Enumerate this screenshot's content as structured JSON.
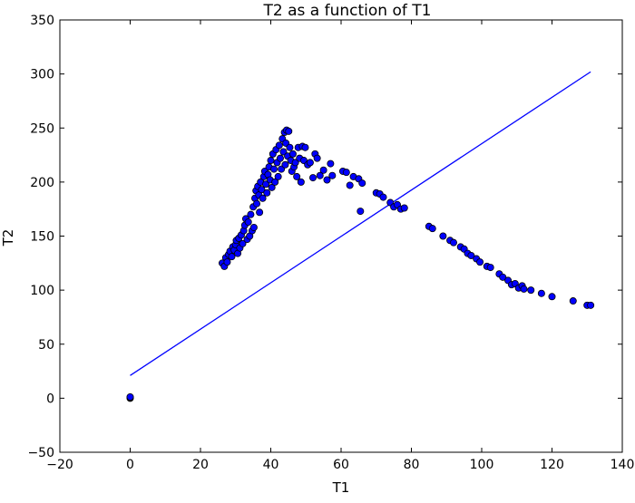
{
  "chart_data": {
    "type": "scatter",
    "title": "T2 as a function of T1",
    "xlabel": "T1",
    "ylabel": "T2",
    "xlim": [
      -20,
      140
    ],
    "ylim": [
      -50,
      350
    ],
    "xticks": [
      -20,
      0,
      20,
      40,
      60,
      80,
      100,
      120,
      140
    ],
    "yticks": [
      -50,
      0,
      50,
      100,
      150,
      200,
      250,
      300,
      350
    ],
    "xtick_labels": [
      "−20",
      "0",
      "20",
      "40",
      "60",
      "80",
      "100",
      "120",
      "140"
    ],
    "ytick_labels": [
      "−50",
      "0",
      "50",
      "100",
      "150",
      "200",
      "250",
      "300",
      "350"
    ],
    "grid": false,
    "legend": "none",
    "scatter_color": "#0000ff",
    "line_color": "#0000ff",
    "points": [
      {
        "x": 0,
        "y": 0
      },
      {
        "x": 0,
        "y": 0.6
      },
      {
        "x": 0,
        "y": 1.2
      },
      {
        "x": 26.2,
        "y": 125
      },
      {
        "x": 26.8,
        "y": 122
      },
      {
        "x": 27.2,
        "y": 130
      },
      {
        "x": 27.6,
        "y": 126
      },
      {
        "x": 28.0,
        "y": 133
      },
      {
        "x": 28.4,
        "y": 136
      },
      {
        "x": 28.9,
        "y": 131
      },
      {
        "x": 29.2,
        "y": 140
      },
      {
        "x": 29.6,
        "y": 137
      },
      {
        "x": 30.0,
        "y": 142
      },
      {
        "x": 30.2,
        "y": 146
      },
      {
        "x": 30.6,
        "y": 134
      },
      {
        "x": 30.9,
        "y": 148
      },
      {
        "x": 31.2,
        "y": 139
      },
      {
        "x": 31.6,
        "y": 151
      },
      {
        "x": 32.0,
        "y": 143
      },
      {
        "x": 32.3,
        "y": 155
      },
      {
        "x": 32.6,
        "y": 160
      },
      {
        "x": 32.9,
        "y": 166
      },
      {
        "x": 33.3,
        "y": 147
      },
      {
        "x": 33.6,
        "y": 163
      },
      {
        "x": 34.0,
        "y": 150
      },
      {
        "x": 34.3,
        "y": 170
      },
      {
        "x": 34.7,
        "y": 155
      },
      {
        "x": 35.0,
        "y": 177
      },
      {
        "x": 35.2,
        "y": 158
      },
      {
        "x": 35.5,
        "y": 185
      },
      {
        "x": 35.8,
        "y": 192
      },
      {
        "x": 36.0,
        "y": 180
      },
      {
        "x": 36.3,
        "y": 196
      },
      {
        "x": 36.6,
        "y": 188
      },
      {
        "x": 36.8,
        "y": 172
      },
      {
        "x": 37.1,
        "y": 200
      },
      {
        "x": 37.4,
        "y": 193
      },
      {
        "x": 37.7,
        "y": 185
      },
      {
        "x": 38.0,
        "y": 205
      },
      {
        "x": 38.3,
        "y": 210
      },
      {
        "x": 38.6,
        "y": 198
      },
      {
        "x": 38.9,
        "y": 190
      },
      {
        "x": 39.2,
        "y": 207
      },
      {
        "x": 39.5,
        "y": 214
      },
      {
        "x": 39.8,
        "y": 202
      },
      {
        "x": 40.0,
        "y": 220
      },
      {
        "x": 40.3,
        "y": 195
      },
      {
        "x": 40.6,
        "y": 226
      },
      {
        "x": 40.9,
        "y": 212
      },
      {
        "x": 41.2,
        "y": 200
      },
      {
        "x": 41.5,
        "y": 230
      },
      {
        "x": 41.8,
        "y": 218
      },
      {
        "x": 42.1,
        "y": 205
      },
      {
        "x": 42.4,
        "y": 234
      },
      {
        "x": 42.7,
        "y": 222
      },
      {
        "x": 43.0,
        "y": 212
      },
      {
        "x": 43.3,
        "y": 240
      },
      {
        "x": 43.6,
        "y": 228
      },
      {
        "x": 43.9,
        "y": 246
      },
      {
        "x": 44.1,
        "y": 216
      },
      {
        "x": 44.3,
        "y": 236
      },
      {
        "x": 44.5,
        "y": 248
      },
      {
        "x": 44.8,
        "y": 224
      },
      {
        "x": 45.1,
        "y": 247
      },
      {
        "x": 45.4,
        "y": 232
      },
      {
        "x": 45.7,
        "y": 220
      },
      {
        "x": 46.0,
        "y": 210
      },
      {
        "x": 46.3,
        "y": 226
      },
      {
        "x": 46.6,
        "y": 214
      },
      {
        "x": 47.0,
        "y": 218
      },
      {
        "x": 47.4,
        "y": 205
      },
      {
        "x": 47.8,
        "y": 232
      },
      {
        "x": 48.2,
        "y": 222
      },
      {
        "x": 48.6,
        "y": 200
      },
      {
        "x": 49.0,
        "y": 233
      },
      {
        "x": 49.4,
        "y": 220
      },
      {
        "x": 49.8,
        "y": 232
      },
      {
        "x": 50.5,
        "y": 216
      },
      {
        "x": 51.2,
        "y": 218
      },
      {
        "x": 52.0,
        "y": 204
      },
      {
        "x": 52.6,
        "y": 226
      },
      {
        "x": 53.2,
        "y": 222
      },
      {
        "x": 54.0,
        "y": 206
      },
      {
        "x": 55.0,
        "y": 211
      },
      {
        "x": 56.0,
        "y": 202
      },
      {
        "x": 57.0,
        "y": 217
      },
      {
        "x": 57.5,
        "y": 206
      },
      {
        "x": 60.5,
        "y": 210
      },
      {
        "x": 61.5,
        "y": 209
      },
      {
        "x": 62.5,
        "y": 197
      },
      {
        "x": 63.5,
        "y": 205
      },
      {
        "x": 65.0,
        "y": 203
      },
      {
        "x": 66.0,
        "y": 199
      },
      {
        "x": 65.5,
        "y": 173
      },
      {
        "x": 70.0,
        "y": 190
      },
      {
        "x": 71.0,
        "y": 189
      },
      {
        "x": 72.0,
        "y": 186
      },
      {
        "x": 74.0,
        "y": 181
      },
      {
        "x": 75.0,
        "y": 177
      },
      {
        "x": 76.0,
        "y": 179
      },
      {
        "x": 77.0,
        "y": 175
      },
      {
        "x": 78.0,
        "y": 176
      },
      {
        "x": 85.0,
        "y": 159
      },
      {
        "x": 86.0,
        "y": 157
      },
      {
        "x": 89.0,
        "y": 150
      },
      {
        "x": 91.0,
        "y": 146
      },
      {
        "x": 92.0,
        "y": 144
      },
      {
        "x": 94.0,
        "y": 140
      },
      {
        "x": 95.0,
        "y": 138
      },
      {
        "x": 96.0,
        "y": 134
      },
      {
        "x": 97.0,
        "y": 132
      },
      {
        "x": 98.5,
        "y": 129
      },
      {
        "x": 99.5,
        "y": 126
      },
      {
        "x": 101.5,
        "y": 122
      },
      {
        "x": 102.5,
        "y": 121
      },
      {
        "x": 105.0,
        "y": 115
      },
      {
        "x": 106.0,
        "y": 112
      },
      {
        "x": 107.5,
        "y": 109
      },
      {
        "x": 108.5,
        "y": 105
      },
      {
        "x": 109.5,
        "y": 106
      },
      {
        "x": 110.5,
        "y": 102
      },
      {
        "x": 111.5,
        "y": 104
      },
      {
        "x": 112.0,
        "y": 101
      },
      {
        "x": 114.0,
        "y": 100
      },
      {
        "x": 117.0,
        "y": 97
      },
      {
        "x": 120.0,
        "y": 94
      },
      {
        "x": 126.0,
        "y": 90
      },
      {
        "x": 130.0,
        "y": 86
      },
      {
        "x": 131.0,
        "y": 86
      }
    ],
    "line": {
      "x": [
        0,
        131
      ],
      "y": [
        21,
        302
      ]
    }
  }
}
